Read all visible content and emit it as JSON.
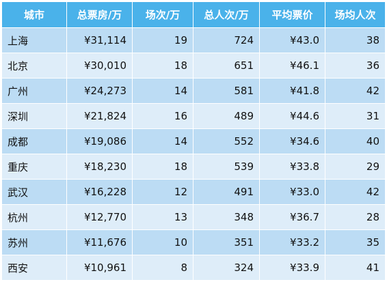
{
  "table": {
    "headers": [
      "城市",
      "总票房/万",
      "场次/万",
      "总人次/万",
      "平均票价",
      "场均人次"
    ],
    "rows": [
      [
        "上海",
        "¥31,114",
        "19",
        "724",
        "¥43.0",
        "38"
      ],
      [
        "北京",
        "¥30,010",
        "18",
        "651",
        "¥46.1",
        "36"
      ],
      [
        "广州",
        "¥24,273",
        "14",
        "581",
        "¥41.8",
        "42"
      ],
      [
        "深圳",
        "¥21,824",
        "16",
        "489",
        "¥44.6",
        "31"
      ],
      [
        "成都",
        "¥19,086",
        "14",
        "552",
        "¥34.6",
        "40"
      ],
      [
        "重庆",
        "¥18,230",
        "18",
        "539",
        "¥33.8",
        "29"
      ],
      [
        "武汉",
        "¥16,228",
        "12",
        "491",
        "¥33.0",
        "42"
      ],
      [
        "杭州",
        "¥12,770",
        "13",
        "348",
        "¥36.7",
        "28"
      ],
      [
        "苏州",
        "¥11,676",
        "10",
        "351",
        "¥33.2",
        "35"
      ],
      [
        "西安",
        "¥10,961",
        "8",
        "324",
        "¥33.9",
        "41"
      ]
    ]
  },
  "colors": {
    "header_bg": "#4ab2ea",
    "row_odd": "#bcdcf4",
    "row_even": "#deedf9"
  }
}
